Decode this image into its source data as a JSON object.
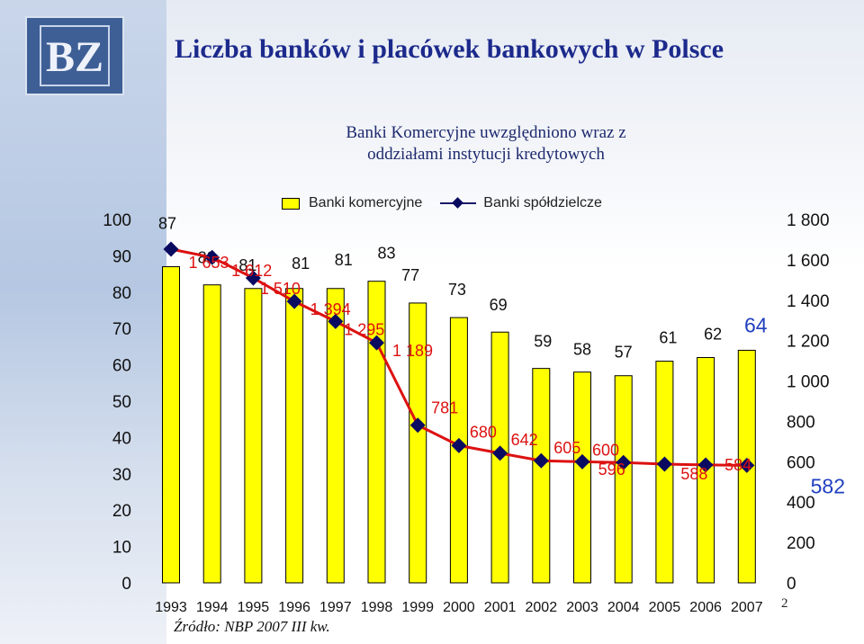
{
  "title": "Liczba banków i placówek bankowych w Polsce",
  "subtitle": [
    "Banki Komercyjne uwzględniono wraz z",
    "oddziałami instytucji kredytowych"
  ],
  "source": "Źródło: NBP 2007 III kw.",
  "page_number": "2",
  "logo_text": "BZ",
  "colors": {
    "bar": "#ffff00",
    "line": "#dd1111",
    "marker": "#0a0a60",
    "title": "#1c2a8c",
    "label_red": "#dd1111",
    "label_blue": "#1f3fbf"
  },
  "chart_data": {
    "type": "bar",
    "categories": [
      "1993",
      "1994",
      "1995",
      "1996",
      "1997",
      "1998",
      "1999",
      "2000",
      "2001",
      "2002",
      "2003",
      "2004",
      "2005",
      "2006",
      "2007"
    ],
    "y_left": {
      "ticks": [
        "100",
        "90",
        "80",
        "70",
        "60",
        "50",
        "40",
        "30",
        "20",
        "10",
        "0"
      ],
      "range": [
        0,
        100
      ]
    },
    "y_right": {
      "ticks": [
        "1 800",
        "1 600",
        "1 400",
        "1 200",
        "1 000",
        "800",
        "600",
        "400",
        "200",
        "0"
      ],
      "range": [
        0,
        1800
      ]
    },
    "legend": {
      "bars": "Banki komercyjne",
      "line": "Banki spółdzielcze",
      "position": "top"
    },
    "series": [
      {
        "name": "Banki komercyjne",
        "type": "bar",
        "axis": "left",
        "values": [
          87,
          82,
          81,
          81,
          81,
          83,
          77,
          73,
          69,
          59,
          58,
          57,
          61,
          62,
          64
        ],
        "labels": [
          "87",
          "82",
          "81",
          "81",
          "81",
          "83",
          "77",
          "73",
          "69",
          "59",
          "58",
          "57",
          "61",
          "62",
          "64"
        ]
      },
      {
        "name": "Banki spółdzielcze",
        "type": "line",
        "axis": "right",
        "values": [
          1653,
          1612,
          1510,
          1394,
          1295,
          1189,
          781,
          680,
          642,
          605,
          600,
          596,
          588,
          584,
          582
        ],
        "labels": [
          "1 653",
          "1 612",
          "1 510",
          "1 394",
          "1 295",
          "1 189",
          "781",
          "680",
          "642",
          "605",
          "600",
          "596",
          "588",
          "584",
          "582"
        ]
      }
    ]
  }
}
